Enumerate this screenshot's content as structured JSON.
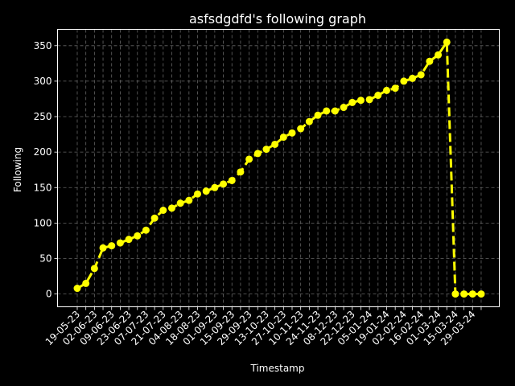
{
  "chart_data": {
    "type": "line",
    "title": "asfsdgdfd's following graph",
    "xlabel": "Timestamp",
    "ylabel": "Following",
    "x_tick_labels": [
      "19-05-23",
      "02-06-23",
      "09-06-23",
      "23-06-23",
      "07-07-23",
      "21-07-23",
      "04-08-23",
      "18-08-23",
      "01-09-23",
      "15-09-23",
      "29-09-23",
      "13-10-23",
      "27-10-23",
      "10-11-23",
      "24-11-23",
      "08-12-23",
      "22-12-23",
      "05-01-24",
      "19-01-24",
      "02-02-24",
      "16-02-24",
      "01-03-24",
      "15-03-24",
      "29-03-24"
    ],
    "y_ticks": [
      0,
      50,
      100,
      150,
      200,
      250,
      300,
      350
    ],
    "ylim": [
      -18,
      373
    ],
    "grid": true,
    "colors": {
      "line": "#ffff00",
      "background": "#000000",
      "axes": "#ffffff",
      "grid": "#808080"
    },
    "series": [
      {
        "values": [
          8,
          15,
          36,
          65,
          68,
          72,
          77,
          82,
          90,
          107,
          118,
          121,
          128,
          132,
          141,
          145,
          150,
          155,
          160,
          172,
          190,
          198,
          204,
          211,
          221,
          227,
          233,
          243,
          252,
          258,
          258,
          263,
          270,
          273,
          274,
          280,
          287,
          290,
          300,
          304,
          309,
          328,
          337,
          355,
          0,
          0,
          0,
          0
        ]
      }
    ]
  }
}
